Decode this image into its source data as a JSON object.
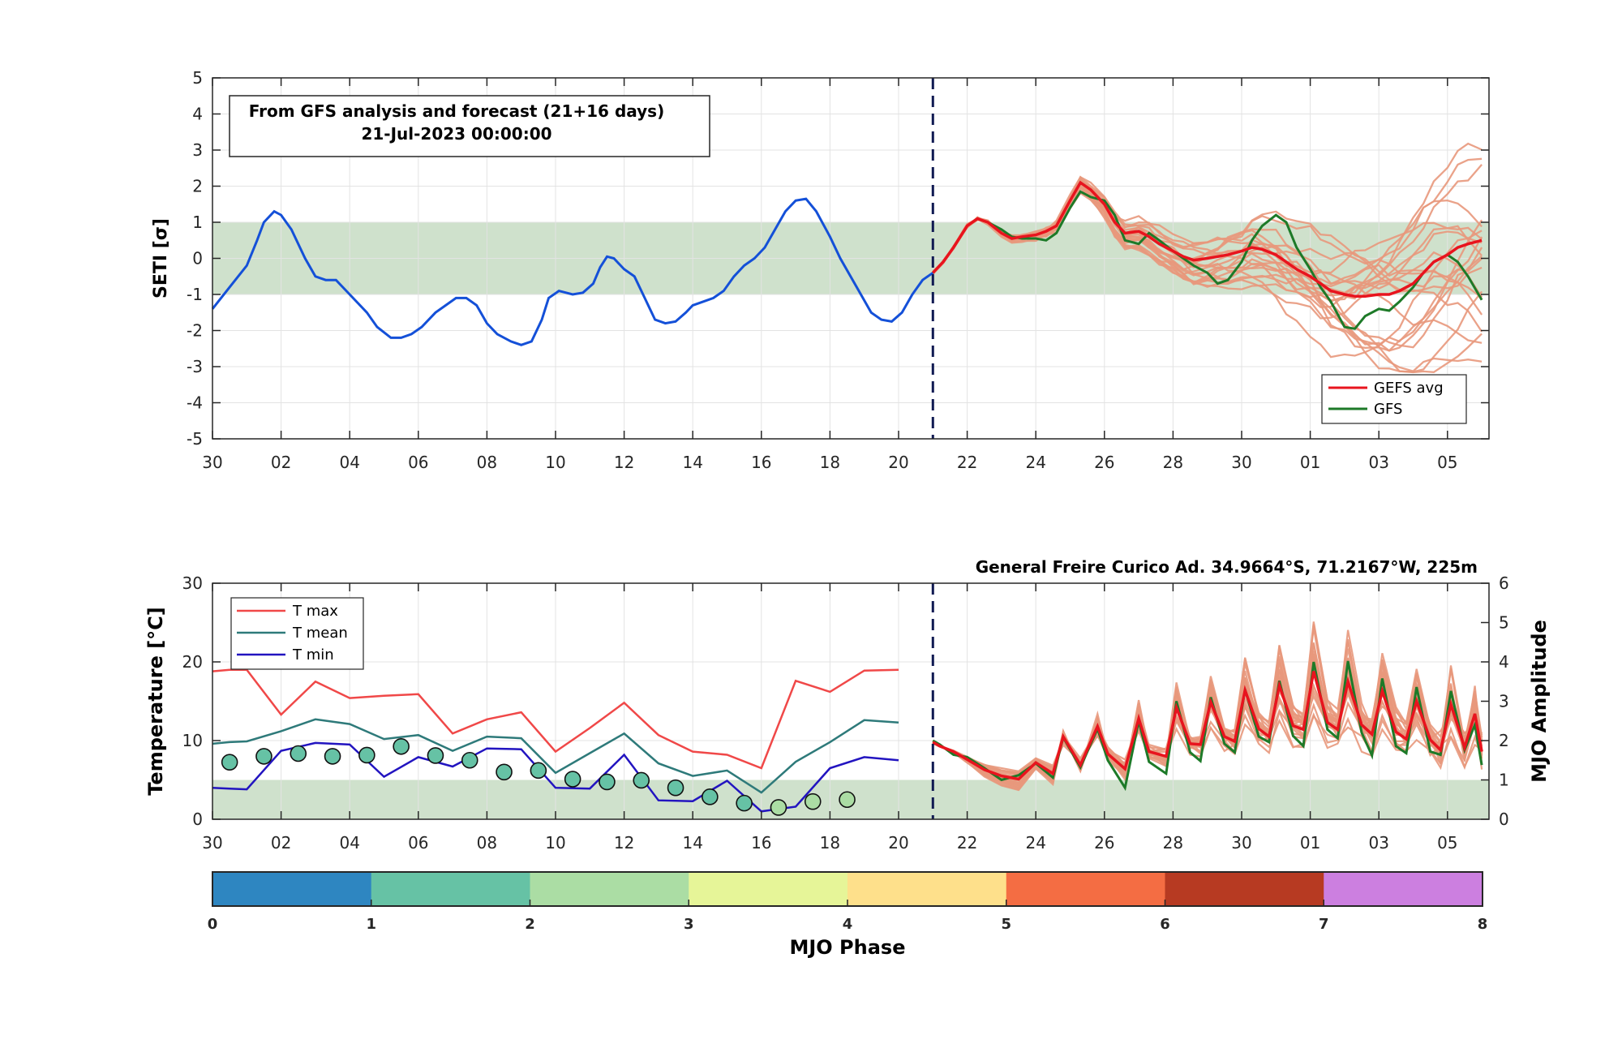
{
  "colors": {
    "observed": "#1450d8",
    "gefs_avg": "#e8141e",
    "gfs": "#1d7a28",
    "ensemble": "#e8987c",
    "normal_band": "#cfe1cc",
    "forecast_line": "#101a52",
    "tmax": "#f04848",
    "tmean": "#2e7a7a",
    "tmin": "#2214c0"
  },
  "chart_data": [
    {
      "type": "line",
      "ylabel": "SETI [σ]",
      "ylim": [
        -5,
        5
      ],
      "yticks": [
        "5",
        "4",
        "3",
        "2",
        "1",
        "0",
        "-1",
        "-2",
        "-3",
        "-4",
        "-5"
      ],
      "xticks": [
        "30",
        "02",
        "04",
        "06",
        "08",
        "10",
        "12",
        "14",
        "16",
        "18",
        "20",
        "22",
        "24",
        "26",
        "28",
        "30",
        "01",
        "03",
        "05"
      ],
      "grid": true,
      "normal_band": [
        -1,
        1
      ],
      "forecast_start_day": 21,
      "annotation": {
        "line1": "From GFS analysis and forecast (21+16 days)",
        "line2": "21-Jul-2023 00:00:00"
      },
      "legend": {
        "position": "bottom-right",
        "entries": [
          "GEFS avg",
          "GFS"
        ]
      },
      "series": [
        {
          "name": "Observed",
          "x": [
            0,
            0.5,
            1,
            1.3,
            1.5,
            1.8,
            2,
            2.3,
            2.7,
            3,
            3.3,
            3.6,
            4,
            4.5,
            4.8,
            5.2,
            5.5,
            5.8,
            6.1,
            6.5,
            6.8,
            7.1,
            7.4,
            7.7,
            8,
            8.3,
            8.7,
            9,
            9.3,
            9.6,
            9.8,
            10.1,
            10.5,
            10.8,
            11.1,
            11.3,
            11.5,
            11.7,
            12,
            12.3,
            12.6,
            12.9,
            13.2,
            13.5,
            13.8,
            14,
            14.3,
            14.6,
            14.9,
            15.2,
            15.5,
            15.8,
            16.1,
            16.4,
            16.7,
            17,
            17.3,
            17.6,
            18,
            18.3,
            18.6,
            18.9,
            19.2,
            19.5,
            19.8,
            20.1,
            20.4,
            20.7,
            21
          ],
          "values": [
            -1.4,
            -0.8,
            -0.2,
            0.5,
            1.0,
            1.3,
            1.2,
            0.8,
            0.0,
            -0.5,
            -0.6,
            -0.6,
            -1.0,
            -1.5,
            -1.9,
            -2.2,
            -2.2,
            -2.1,
            -1.9,
            -1.5,
            -1.3,
            -1.1,
            -1.1,
            -1.3,
            -1.8,
            -2.1,
            -2.3,
            -2.4,
            -2.3,
            -1.7,
            -1.1,
            -0.9,
            -1.0,
            -0.95,
            -0.7,
            -0.25,
            0.05,
            0.0,
            -0.3,
            -0.5,
            -1.1,
            -1.7,
            -1.8,
            -1.75,
            -1.5,
            -1.3,
            -1.2,
            -1.1,
            -0.9,
            -0.5,
            -0.2,
            0.0,
            0.3,
            0.8,
            1.3,
            1.6,
            1.65,
            1.3,
            0.6,
            0.0,
            -0.5,
            -1.0,
            -1.5,
            -1.7,
            -1.75,
            -1.5,
            -1.0,
            -0.6,
            -0.4
          ]
        },
        {
          "name": "GEFS avg",
          "x": [
            21,
            21.3,
            21.6,
            22,
            22.3,
            22.6,
            23,
            23.3,
            23.6,
            24,
            24.3,
            24.6,
            25,
            25.3,
            25.6,
            26,
            26.3,
            26.6,
            27,
            27.3,
            27.6,
            28,
            28.3,
            28.6,
            29,
            29.3,
            29.6,
            30,
            30.3,
            30.6,
            31,
            31.3,
            31.6,
            32,
            32.3,
            32.6,
            33,
            33.3,
            33.6,
            34,
            34.3,
            34.6,
            35,
            35.3,
            35.6,
            36,
            36.3,
            36.6,
            37
          ],
          "values": [
            -0.4,
            -0.1,
            0.3,
            0.9,
            1.1,
            1.0,
            0.7,
            0.55,
            0.6,
            0.65,
            0.75,
            0.9,
            1.6,
            2.1,
            1.9,
            1.5,
            1.0,
            0.7,
            0.75,
            0.6,
            0.4,
            0.2,
            0.05,
            -0.05,
            0.0,
            0.05,
            0.1,
            0.2,
            0.3,
            0.25,
            0.1,
            -0.1,
            -0.3,
            -0.5,
            -0.7,
            -0.9,
            -1.0,
            -1.05,
            -1.05,
            -1.0,
            -1.0,
            -0.9,
            -0.7,
            -0.4,
            -0.1,
            0.1,
            0.3,
            0.4,
            0.5
          ]
        },
        {
          "name": "GFS",
          "x": [
            21,
            21.3,
            21.6,
            22,
            22.3,
            22.6,
            23,
            23.3,
            23.6,
            24,
            24.3,
            24.6,
            25,
            25.3,
            25.6,
            26,
            26.3,
            26.6,
            27,
            27.3,
            27.6,
            28,
            28.3,
            28.6,
            29,
            29.3,
            29.6,
            30,
            30.3,
            30.6,
            31,
            31.3,
            31.6,
            32,
            32.3,
            32.6,
            33,
            33.3,
            33.6,
            34,
            34.3,
            34.6,
            35,
            35.3,
            35.6,
            36,
            36.3,
            36.6,
            37
          ],
          "values": [
            -0.4,
            -0.1,
            0.3,
            0.9,
            1.1,
            1.0,
            0.8,
            0.6,
            0.55,
            0.55,
            0.5,
            0.7,
            1.4,
            1.85,
            1.7,
            1.6,
            1.2,
            0.5,
            0.4,
            0.7,
            0.5,
            0.2,
            0.0,
            -0.2,
            -0.4,
            -0.7,
            -0.6,
            -0.1,
            0.5,
            0.9,
            1.2,
            1.0,
            0.3,
            -0.3,
            -0.8,
            -1.2,
            -1.9,
            -1.95,
            -1.6,
            -1.4,
            -1.45,
            -1.2,
            -0.8,
            -0.4,
            -0.1,
            0.1,
            -0.1,
            -0.5,
            -1.15
          ]
        }
      ]
    },
    {
      "type": "line",
      "title": "General Freire Curico Ad. 34.9664°S, 71.2167°W, 225m",
      "ylabel": "Temperature [°C]",
      "ylabel_right": "MJO Amplitude",
      "ylim": [
        0,
        30
      ],
      "ylim_right": [
        0,
        6
      ],
      "yticks": [
        "30",
        "20",
        "10",
        "0"
      ],
      "yticks_right": [
        "6",
        "5",
        "4",
        "3",
        "2",
        "1",
        "0"
      ],
      "xticks": [
        "30",
        "02",
        "04",
        "06",
        "08",
        "10",
        "12",
        "14",
        "16",
        "18",
        "20",
        "22",
        "24",
        "26",
        "28",
        "30",
        "01",
        "03",
        "05"
      ],
      "grid": true,
      "normal_band": [
        0,
        5
      ],
      "forecast_start_day": 21,
      "legend": {
        "position": "top-left",
        "entries": [
          "T max",
          "T mean",
          "T min"
        ]
      },
      "series": [
        {
          "name": "T max",
          "x": [
            0,
            0.5,
            1,
            2,
            3,
            4,
            5,
            6,
            7,
            8,
            9,
            10,
            11,
            12,
            13,
            14,
            15,
            16,
            17,
            18,
            19,
            20
          ],
          "values": [
            18.8,
            19.0,
            19.0,
            13.3,
            17.5,
            15.4,
            15.7,
            15.9,
            10.9,
            12.7,
            13.6,
            8.6,
            11.6,
            14.8,
            10.7,
            8.6,
            8.2,
            6.5,
            17.6,
            16.2,
            18.9,
            19.0
          ]
        },
        {
          "name": "T mean",
          "x": [
            0,
            0.5,
            1,
            2,
            3,
            4,
            5,
            6,
            7,
            8,
            9,
            10,
            11,
            12,
            13,
            14,
            15,
            16,
            17,
            18,
            19,
            20
          ],
          "values": [
            9.6,
            9.8,
            9.9,
            11.2,
            12.7,
            12.1,
            10.2,
            10.7,
            8.7,
            10.5,
            10.3,
            5.9,
            8.4,
            10.9,
            7.1,
            5.5,
            6.2,
            3.4,
            7.3,
            9.8,
            12.6,
            12.3
          ]
        },
        {
          "name": "T min",
          "x": [
            0,
            0.5,
            1,
            2,
            3,
            4,
            5,
            6,
            7,
            8,
            9,
            10,
            11,
            12,
            13,
            14,
            15,
            16,
            17,
            18,
            19,
            20
          ],
          "values": [
            4.0,
            3.9,
            3.8,
            8.7,
            9.7,
            9.5,
            5.4,
            7.9,
            6.7,
            9.0,
            8.9,
            4.0,
            3.9,
            8.2,
            2.4,
            2.3,
            4.9,
            1.0,
            1.6,
            6.5,
            7.9,
            7.5
          ]
        },
        {
          "name": "GEFS avg",
          "x": [
            21,
            21.2,
            21.6,
            22,
            22.5,
            23,
            23.5,
            24,
            24.5,
            24.8,
            25.3,
            25.8,
            26.1,
            26.6,
            27,
            27.3,
            27.8,
            28.1,
            28.5,
            28.8,
            29.1,
            29.5,
            29.8,
            30.1,
            30.5,
            30.8,
            31.1,
            31.5,
            31.8,
            32.1,
            32.5,
            32.8,
            33.1,
            33.5,
            33.8,
            34.1,
            34.5,
            34.8,
            35.1,
            35.5,
            35.8,
            36.1,
            36.5,
            36.8,
            37
          ],
          "values": [
            9.8,
            9.3,
            8.6,
            7.6,
            6.3,
            5.5,
            5.1,
            7.2,
            5.8,
            10.5,
            6.9,
            11.8,
            8.3,
            6.4,
            12.8,
            8.6,
            8.0,
            14.2,
            9.6,
            9.5,
            14.9,
            10.5,
            9.9,
            16.4,
            11.5,
            10.5,
            17.0,
            11.9,
            11.4,
            18.8,
            12.3,
            11.4,
            17.5,
            12.0,
            10.8,
            16.3,
            11.1,
            10.2,
            15.0,
            10.1,
            8.8,
            14.6,
            9.1,
            13.4,
            8.6
          ]
        },
        {
          "name": "GFS",
          "x": [
            21,
            21.2,
            21.6,
            22,
            22.5,
            23,
            23.5,
            24,
            24.5,
            24.8,
            25.3,
            25.8,
            26.1,
            26.6,
            27,
            27.3,
            27.8,
            28.1,
            28.5,
            28.8,
            29.1,
            29.5,
            29.8,
            30.1,
            30.5,
            30.8,
            31.1,
            31.5,
            31.8,
            32.1,
            32.5,
            32.8,
            33.1,
            33.5,
            33.8,
            34.1,
            34.5,
            34.8,
            35.1,
            35.5,
            35.8,
            36.1,
            36.5,
            36.8,
            37
          ],
          "values": [
            10.0,
            9.5,
            8.2,
            7.9,
            6.5,
            5.0,
            5.6,
            7.1,
            5.3,
            10.4,
            6.6,
            11.5,
            7.5,
            4.0,
            12.5,
            7.3,
            5.8,
            15.0,
            8.5,
            7.4,
            15.5,
            9.6,
            8.5,
            16.5,
            10.5,
            9.8,
            17.6,
            10.6,
            9.3,
            20.0,
            11.4,
            10.3,
            20.1,
            11.0,
            8.1,
            17.9,
            9.3,
            8.4,
            16.8,
            8.6,
            8.2,
            16.3,
            8.8,
            12.0,
            6.9
          ]
        }
      ],
      "mjo_points": {
        "x": [
          0.5,
          1.5,
          2.5,
          3.5,
          4.5,
          5.5,
          6.5,
          7.5,
          8.5,
          9.5,
          10.5,
          11.5,
          12.5,
          13.5,
          14.5,
          15.5,
          16.5,
          17.5,
          18.5
        ],
        "amplitude": [
          1.45,
          1.6,
          1.67,
          1.6,
          1.63,
          1.85,
          1.62,
          1.5,
          1.2,
          1.24,
          1.02,
          0.95,
          0.99,
          0.8,
          0.57,
          0.41,
          0.3,
          0.45,
          0.5
        ],
        "phase": [
          1.5,
          1.5,
          1.5,
          1.5,
          1.5,
          1.5,
          1.5,
          1.5,
          1.5,
          1.5,
          1.5,
          1.5,
          1.5,
          1.5,
          1.5,
          1.5,
          2.5,
          2.5,
          2.5
        ]
      }
    },
    {
      "type": "bar",
      "xlabel": "MJO Phase",
      "ticks": [
        "0",
        "1",
        "2",
        "3",
        "4",
        "5",
        "6",
        "7",
        "8"
      ],
      "segment_colors": [
        "#2e86c1",
        "#66c2a5",
        "#abdda4",
        "#e6f598",
        "#fee08b",
        "#f46d43",
        "#b73a22",
        "#cc7fe0"
      ]
    }
  ]
}
